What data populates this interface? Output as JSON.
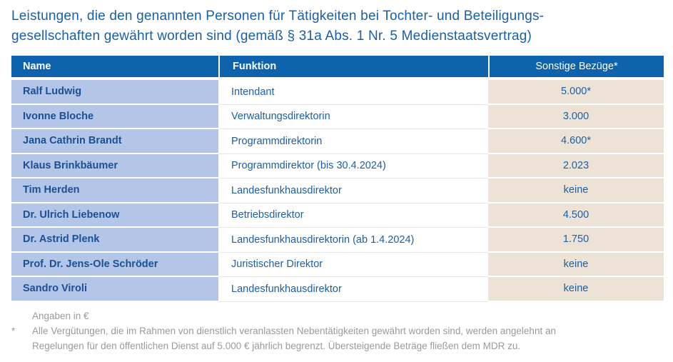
{
  "title": {
    "line1": "Leistungen, die den genannten Personen für Tätigkeiten bei Tochter- und Beteiligungs-",
    "line2": "gesellschaften gewährt worden sind (gemäß § 31a Abs. 1 Nr. 5 Medienstaatsvertrag)"
  },
  "table": {
    "headers": {
      "name": "Name",
      "funktion": "Funktion",
      "bezuege": "Sonstige Bezüge*"
    },
    "rows": [
      {
        "name": "Ralf Ludwig",
        "funktion": "Intendant",
        "bezuege": "5.000*"
      },
      {
        "name": "Ivonne Bloche",
        "funktion": "Verwaltungsdirektorin",
        "bezuege": "3.000"
      },
      {
        "name": "Jana Cathrin Brandt",
        "funktion": "Programmdirektorin",
        "bezuege": "4.600*"
      },
      {
        "name": "Klaus Brinkbäumer",
        "funktion": "Programmdirektor (bis 30.4.2024)",
        "bezuege": "2.023"
      },
      {
        "name": "Tim Herden",
        "funktion": "Landesfunkhausdirektor",
        "bezuege": "keine"
      },
      {
        "name": "Dr. Ulrich Liebenow",
        "funktion": "Betriebsdirektor",
        "bezuege": "4.500"
      },
      {
        "name": "Dr. Astrid Plenk",
        "funktion": "Landesfunkhausdirektorin (ab 1.4.2024)",
        "bezuege": "1.750"
      },
      {
        "name": "Prof. Dr. Jens-Ole Schröder",
        "funktion": "Juristischer Direktor",
        "bezuege": "keine"
      },
      {
        "name": "Sandro Viroli",
        "funktion": "Landesfunkhausdirektor",
        "bezuege": "keine"
      }
    ]
  },
  "notes": {
    "unit": "Angaben in €",
    "footnote_mark": "*",
    "footnote_line1": "Alle Vergütungen, die im Rahmen von dienstlich veranlassten Nebentätigkeiten gewährt worden sind, werden angelehnt an",
    "footnote_line2": "Regelungen für den öffentlichen Dienst auf 5.000 € jährlich begrenzt. Übersteigende Beträge fließen dem MDR zu."
  },
  "colors": {
    "title": "#1a5fa8",
    "header_bg": "#0f63ad",
    "name_col_bg": "#b3c6e7",
    "value_col_bg": "#ece3d6",
    "note_text": "#9a9a9a"
  }
}
